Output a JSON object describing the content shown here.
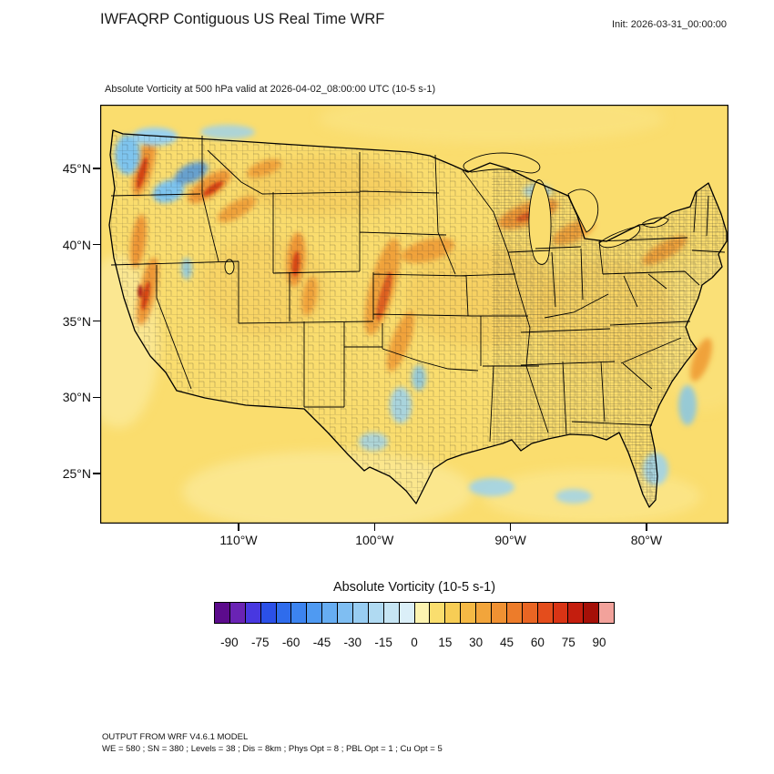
{
  "header": {
    "title": "IWFAQRP Contiguous US Real Time WRF",
    "init_label": "Init: 2026-03-31_00:00:00"
  },
  "map": {
    "subtitle": "Absolute Vorticity at 500 hPa valid at 2026-04-02_08:00:00 UTC   (10-5 s-1)",
    "y_ticks": [
      "45°N",
      "40°N",
      "35°N",
      "30°N",
      "25°N"
    ],
    "x_ticks": [
      "110°W",
      "100°W",
      "90°W",
      "80°W"
    ],
    "background_fill_color": "#FADD6E"
  },
  "colorbar": {
    "title": "Absolute Vorticity  (10-5 s-1)",
    "ticks": [
      -90,
      -75,
      -60,
      -45,
      -30,
      -15,
      0,
      15,
      30,
      45,
      60,
      75,
      90
    ],
    "value_range": [
      -97.5,
      97.5
    ],
    "colors": [
      "#5C0B8C",
      "#6A23B4",
      "#4838E0",
      "#2B50E8",
      "#2F6CEC",
      "#3C84F0",
      "#4F9AF2",
      "#66ADF2",
      "#7FBEF2",
      "#98CDF2",
      "#B0DAF2",
      "#C6E5F4",
      "#DBEFF8",
      "#FCF3B0",
      "#FADE6E",
      "#F7CD55",
      "#F5B945",
      "#F2A53B",
      "#F09132",
      "#ED7C2A",
      "#E96523",
      "#E44D1C",
      "#D93415",
      "#C41E0E",
      "#A51008",
      "#F2A29B"
    ]
  },
  "footer": {
    "line1": "OUTPUT FROM WRF V4.6.1 MODEL",
    "line2": "WE = 580 ; SN = 380 ; Levels = 38 ; Dis = 8km ; Phys Opt = 8 ; PBL Opt = 1 ; Cu Opt = 5"
  },
  "chart_data": {
    "type": "heatmap",
    "title": "Absolute Vorticity at 500 hPa",
    "units": "10-5 s-1",
    "region": "Contiguous US",
    "model": "WRF V4.6.1",
    "init_time": "2026-03-31_00:00:00",
    "valid_time": "2026-04-02_08:00:00 UTC",
    "x_axis": {
      "label": "longitude",
      "ticks": [
        "110°W",
        "100°W",
        "90°W",
        "80°W"
      ]
    },
    "y_axis": {
      "label": "latitude",
      "ticks": [
        "45°N",
        "40°N",
        "35°N",
        "30°N",
        "25°N"
      ]
    },
    "colorbar": {
      "title": "Absolute Vorticity  (10-5 s-1)",
      "tick_values": [
        -90,
        -75,
        -60,
        -45,
        -30,
        -15,
        0,
        15,
        30,
        45,
        60,
        75,
        90
      ],
      "n_segments": 26,
      "segment_width_value": 7.5,
      "colors": [
        "#5C0B8C",
        "#6A23B4",
        "#4838E0",
        "#2B50E8",
        "#2F6CEC",
        "#3C84F0",
        "#4F9AF2",
        "#66ADF2",
        "#7FBEF2",
        "#98CDF2",
        "#B0DAF2",
        "#C6E5F4",
        "#DBEFF8",
        "#FCF3B0",
        "#FADE6E",
        "#F7CD55",
        "#F5B945",
        "#F2A53B",
        "#F09132",
        "#ED7C2A",
        "#E96523",
        "#E44D1C",
        "#D93415",
        "#C41E0E",
        "#A51008",
        "#F2A29B"
      ]
    },
    "field_notes": "Background field mostly 0 to 15; elevated positive vorticity streaks (30-90) over the Pacific Northwest, Sierra Nevada, northern Rockies, Colorado Rockies, central Plains and Great Lakes; scattered negative pockets (-15 to -45, blue) over the Pacific Northwest, Texas, the Gulf coast and the western Atlantic; county and state boundaries overlaid on contiguous US."
  },
  "wrf_config": {
    "WE": "580",
    "SN": "380",
    "Levels": "38",
    "Dis": "8km",
    "Phys_Opt": "8",
    "PBL_Opt": "1",
    "Cu_Opt": "5"
  }
}
